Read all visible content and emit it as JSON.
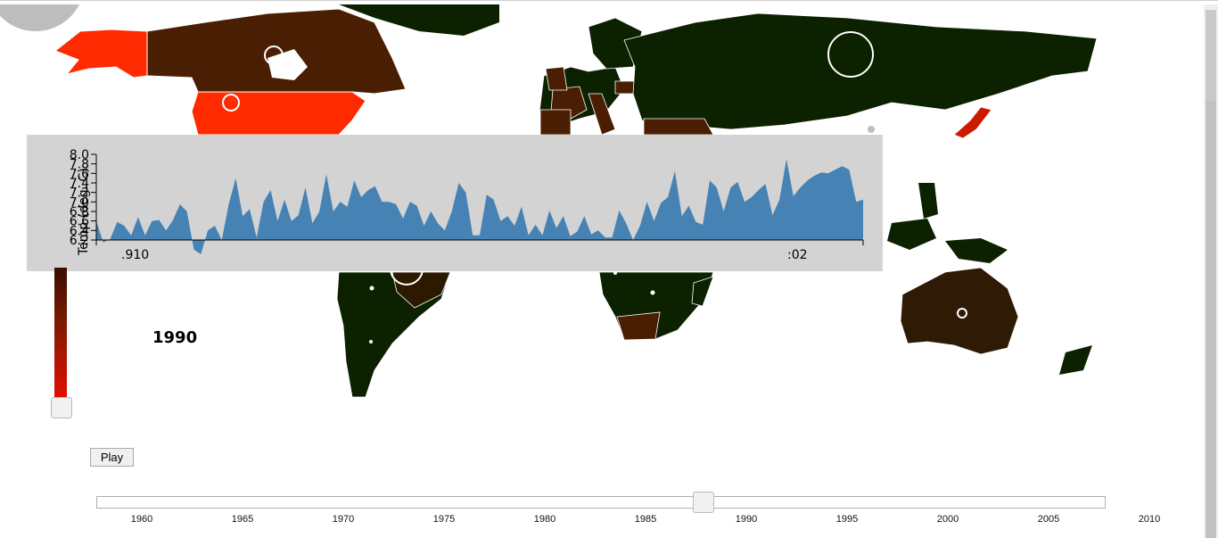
{
  "selected_year": "1990",
  "play_label": "Play",
  "timeline": {
    "ticks": [
      "1960",
      "1965",
      "1970",
      "1975",
      "1980",
      "1985",
      "1990",
      "1995",
      "2000",
      "2005",
      "2010"
    ],
    "value": 1988
  },
  "colors": {
    "ocean": "#ffffff",
    "land_cool": "#0b2100",
    "land_brown": "#4a1e03",
    "land_hot": "#ff2a00",
    "area_fill": "#4682b4",
    "panel": "#d3d3d3"
  },
  "chart_data": {
    "type": "area",
    "ylabel": "Temp (deg. C)",
    "y_ticks": [
      "6.2",
      "6.4",
      "6.6",
      "6.8",
      "7.0",
      "7.2",
      "7.4",
      "7.6",
      "7.8",
      "8.0"
    ],
    "x_tick_labels": [
      ".910",
      ":02"
    ],
    "ylim": [
      6.2,
      8.0
    ],
    "values": [
      6.6,
      6.15,
      6.22,
      6.58,
      6.5,
      6.3,
      6.68,
      6.3,
      6.6,
      6.62,
      6.4,
      6.62,
      6.95,
      6.8,
      6.0,
      5.9,
      6.4,
      6.5,
      6.2,
      6.95,
      7.5,
      6.7,
      6.85,
      6.25,
      7.0,
      7.25,
      6.6,
      7.05,
      6.6,
      6.72,
      7.3,
      6.55,
      6.8,
      7.58,
      6.8,
      7.0,
      6.9,
      7.45,
      7.1,
      7.25,
      7.33,
      7.0,
      7.0,
      6.95,
      6.65,
      7.0,
      6.92,
      6.5,
      6.8,
      6.55,
      6.4,
      6.8,
      7.4,
      7.2,
      6.3,
      6.3,
      7.15,
      7.05,
      6.6,
      6.7,
      6.5,
      6.9,
      6.3,
      6.52,
      6.3,
      6.82,
      6.45,
      6.7,
      6.28,
      6.38,
      6.7,
      6.32,
      6.4,
      6.25,
      6.25,
      6.82,
      6.55,
      6.2,
      6.5,
      7.0,
      6.6,
      6.98,
      7.1,
      7.65,
      6.7,
      6.92,
      6.58,
      6.52,
      7.45,
      7.3,
      6.8,
      7.3,
      7.42,
      7.0,
      7.1,
      7.25,
      7.38,
      6.72,
      7.05,
      7.9,
      7.12,
      7.3,
      7.45,
      7.55,
      7.62,
      7.6,
      7.68,
      7.75,
      7.68,
      7.0,
      7.05
    ]
  }
}
